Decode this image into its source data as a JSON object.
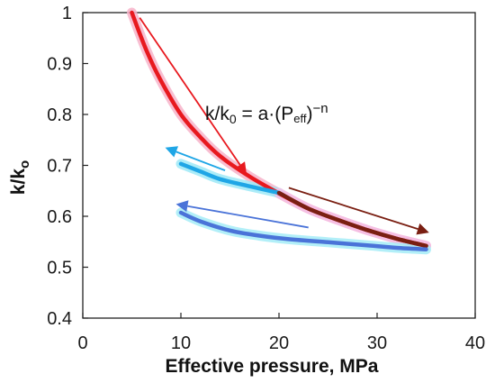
{
  "chart_data": {
    "type": "line",
    "title": "",
    "xlabel": "Effective pressure, MPa",
    "ylabel": {
      "main": "k/k",
      "sub": "o"
    },
    "xlim": [
      0,
      40
    ],
    "ylim": [
      0.4,
      1.0
    ],
    "x_ticks": [
      "0",
      "10",
      "20",
      "30",
      "40"
    ],
    "y_ticks": [
      "0.4",
      "0.5",
      "0.6",
      "0.7",
      "0.8",
      "0.9",
      "1"
    ],
    "x_tick_values": [
      0,
      10,
      20,
      30,
      40
    ],
    "y_tick_values": [
      0.4,
      0.5,
      0.6,
      0.7,
      0.8,
      0.9,
      1.0
    ],
    "grid": false,
    "legend": "none",
    "annotation": {
      "lhs_main": "k/k",
      "lhs_sub": "0",
      "middle": " = ",
      "coef": "a·(P",
      "sub": "eff",
      "tail": ")",
      "sup": "−n"
    },
    "series": [
      {
        "role": "loading-cycle-1",
        "color": "#e8191f",
        "glow": "#f7b3c9",
        "points": [
          [
            5.0,
            1.0
          ],
          [
            6.5,
            0.925
          ],
          [
            8,
            0.865
          ],
          [
            10,
            0.8
          ],
          [
            12,
            0.755
          ],
          [
            14,
            0.718
          ],
          [
            17,
            0.678
          ],
          [
            20,
            0.645
          ],
          [
            23,
            0.615
          ],
          [
            26,
            0.593
          ],
          [
            29,
            0.573
          ],
          [
            32,
            0.556
          ],
          [
            35,
            0.542
          ]
        ]
      },
      {
        "role": "unloading-cycle-1",
        "color": "#1fa6e6",
        "glow": "#9ee9f7",
        "points": [
          [
            10,
            0.703
          ],
          [
            12,
            0.688
          ],
          [
            14,
            0.673
          ],
          [
            17,
            0.659
          ],
          [
            20,
            0.646
          ]
        ]
      },
      {
        "role": "reloading-cycle-2",
        "color": "#7a1f12",
        "glow": "#f5bfe6",
        "points": [
          [
            20,
            0.646
          ],
          [
            23,
            0.615
          ],
          [
            26,
            0.593
          ],
          [
            29,
            0.573
          ],
          [
            32,
            0.556
          ],
          [
            35,
            0.542
          ]
        ]
      },
      {
        "role": "unloading-cycle-2",
        "color": "#4a73d8",
        "glow": "#a5ecf7",
        "points": [
          [
            10,
            0.607
          ],
          [
            12,
            0.59
          ],
          [
            15,
            0.572
          ],
          [
            18,
            0.562
          ],
          [
            21,
            0.555
          ],
          [
            25,
            0.549
          ],
          [
            29,
            0.543
          ],
          [
            32,
            0.538
          ],
          [
            35,
            0.535
          ]
        ]
      }
    ],
    "arrows": [
      {
        "color": "#e8191f",
        "from": [
          5.8,
          0.99
        ],
        "to": [
          16.7,
          0.682
        ]
      },
      {
        "color": "#1fa6e6",
        "from": [
          14.5,
          0.69
        ],
        "to": [
          8.4,
          0.735
        ]
      },
      {
        "color": "#7a1f12",
        "from": [
          21,
          0.656
        ],
        "to": [
          35.3,
          0.568
        ]
      },
      {
        "color": "#4a73d8",
        "from": [
          23,
          0.578
        ],
        "to": [
          9.5,
          0.624
        ]
      }
    ]
  }
}
